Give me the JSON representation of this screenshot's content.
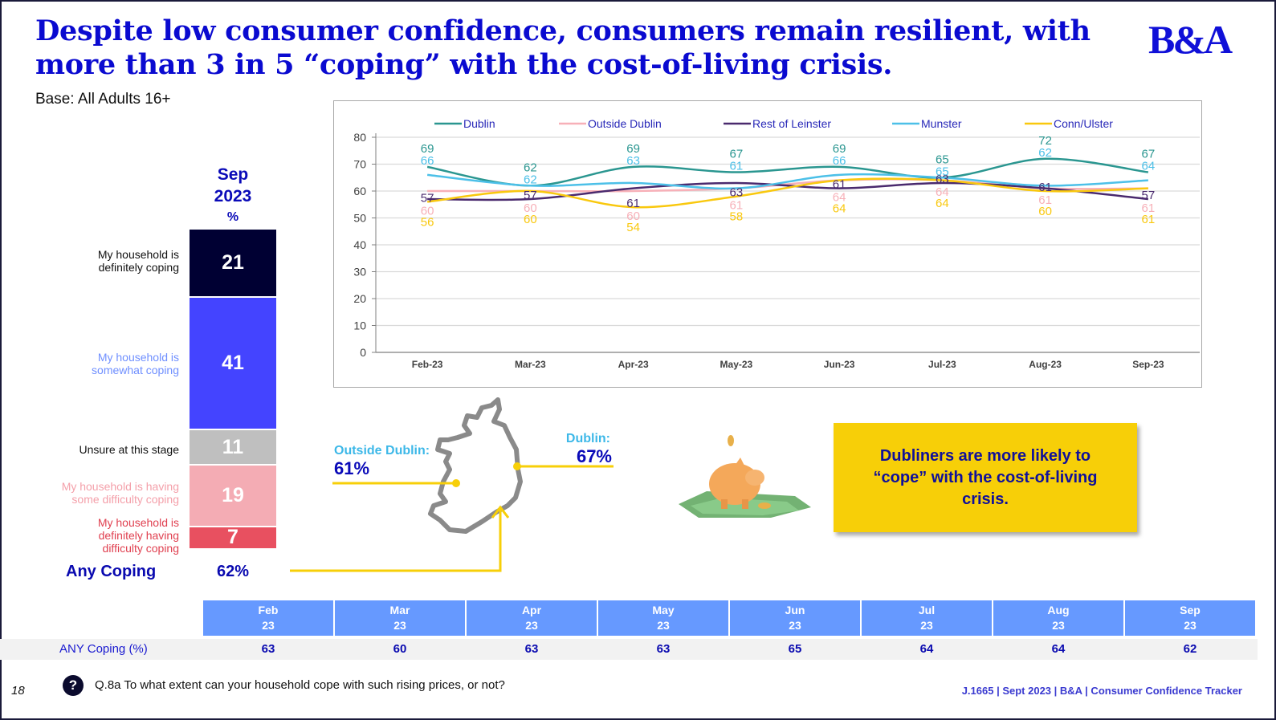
{
  "slide": {
    "title": "Despite low consumer confidence, consumers remain resilient, with more than 3 in 5 “coping” with the cost-of-living crisis.",
    "base": "Base: All Adults 16+",
    "logo": "B&A",
    "page_number": "18",
    "question_icon": "?",
    "question": "Q.8a To what extent can your household cope with such rising prices, or not?",
    "source": "J.1665 | Sept 2023 | B&A | Consumer Confidence Tracker"
  },
  "stacked_bar": {
    "header_month": "Sep",
    "header_year": "2023",
    "header_unit": "%",
    "segments": [
      {
        "label": "My household is definitely coping",
        "value": 21,
        "color": "#000033",
        "label_color": "#111111"
      },
      {
        "label": "My household is somewhat coping",
        "value": 41,
        "color": "#4444ff",
        "label_color": "#6f8fff"
      },
      {
        "label": "Unsure at this stage",
        "value": 11,
        "color": "#bfbfbf",
        "label_color": "#111111"
      },
      {
        "label": "My household is having some difficulty coping",
        "value": 19,
        "color": "#f4acb4",
        "label_color": "#f4a0aa"
      },
      {
        "label": "My household is definitely having difficulty coping",
        "value": 7,
        "color": "#e85060",
        "label_color": "#e04050"
      }
    ],
    "any_coping_label": "Any Coping",
    "any_coping_value": "62%"
  },
  "map": {
    "outside_label": "Outside Dublin:",
    "outside_value": "61%",
    "dublin_label": "Dublin:",
    "dublin_value": "67%",
    "label_color": "#3db8e8",
    "value_color": "#0a0ab8",
    "line_color": "#f7cf08"
  },
  "callout": {
    "text": "Dubliners are more likely to “cope” with the cost-of-living crisis.",
    "icon": "piggy-bank-icon"
  },
  "chart_data": {
    "type": "line",
    "title": "",
    "xlabel": "",
    "ylabel": "",
    "categories": [
      "Feb-23",
      "Mar-23",
      "Apr-23",
      "May-23",
      "Jun-23",
      "Jul-23",
      "Aug-23",
      "Sep-23"
    ],
    "ylim": [
      0,
      80
    ],
    "yticks": [
      0,
      10,
      20,
      30,
      40,
      50,
      60,
      70,
      80
    ],
    "grid": true,
    "legend_position": "top",
    "smooth": true,
    "series": [
      {
        "name": "Dublin",
        "color": "#2a9690",
        "values": [
          69,
          62,
          69,
          67,
          69,
          65,
          72,
          67
        ]
      },
      {
        "name": "Outside Dublin",
        "color": "#f7b0b8",
        "values": [
          60,
          60,
          60,
          61,
          64,
          64,
          61,
          61
        ]
      },
      {
        "name": "Rest of Leinster",
        "color": "#4a2a6e",
        "values": [
          57,
          57,
          61,
          63,
          61,
          63,
          61,
          57
        ]
      },
      {
        "name": "Munster",
        "color": "#4cc0e8",
        "values": [
          66,
          62,
          63,
          61,
          66,
          65,
          62,
          64
        ]
      },
      {
        "name": "Conn/Ulster",
        "color": "#f9c80e",
        "values": [
          56,
          60,
          54,
          58,
          64,
          64,
          60,
          61
        ]
      }
    ]
  },
  "table": {
    "row_label": "ANY Coping (%)",
    "columns": [
      {
        "month": "Feb",
        "year": "23",
        "value": "63"
      },
      {
        "month": "Mar",
        "year": "23",
        "value": "60"
      },
      {
        "month": "Apr",
        "year": "23",
        "value": "63"
      },
      {
        "month": "May",
        "year": "23",
        "value": "63"
      },
      {
        "month": "Jun",
        "year": "23",
        "value": "65"
      },
      {
        "month": "Jul",
        "year": "23",
        "value": "64"
      },
      {
        "month": "Aug",
        "year": "23",
        "value": "64"
      },
      {
        "month": "Sep",
        "year": "23",
        "value": "62"
      }
    ]
  }
}
